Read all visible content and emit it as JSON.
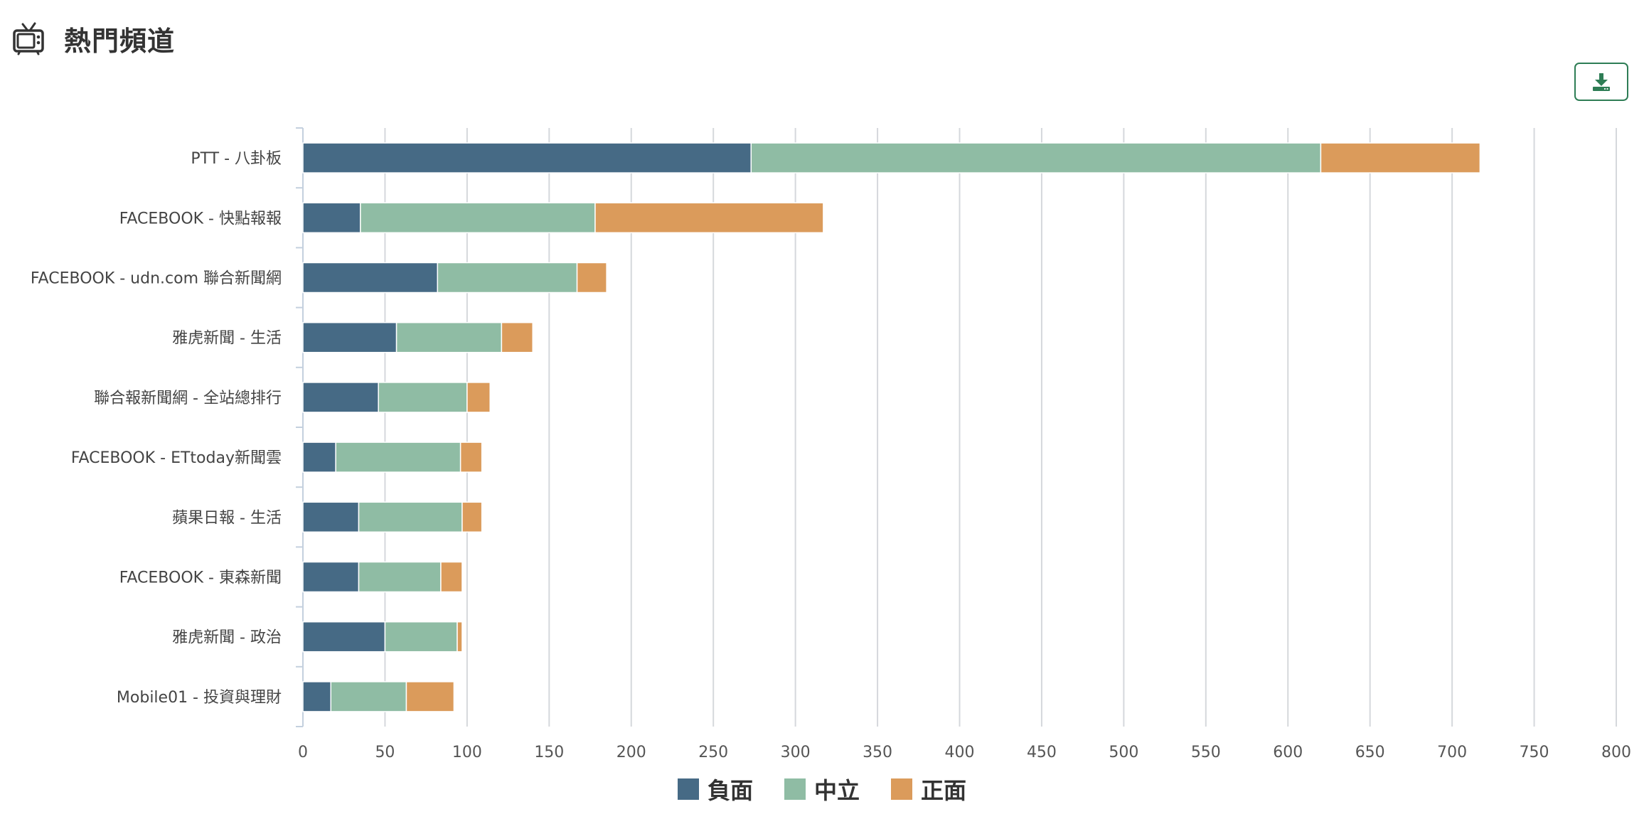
{
  "header": {
    "title": "熱門頻道",
    "icon": "tv-icon"
  },
  "toolbar": {
    "download_icon": "download-icon"
  },
  "chart_data": {
    "type": "bar",
    "orientation": "horizontal",
    "stacked": true,
    "categories": [
      "PTT - 八卦板",
      "FACEBOOK - 快點報報",
      "FACEBOOK - udn.com 聯合新聞網",
      "雅虎新聞 - 生活",
      "聯合報新聞網 - 全站總排行",
      "FACEBOOK - ETtoday新聞雲",
      "蘋果日報 - 生活",
      "FACEBOOK - 東森新聞",
      "雅虎新聞 - 政治",
      "Mobile01 - 投資與理財"
    ],
    "series": [
      {
        "name": "負面",
        "color": "#466a85",
        "values": [
          273,
          35,
          82,
          57,
          46,
          20,
          34,
          34,
          50,
          17
        ]
      },
      {
        "name": "中立",
        "color": "#8fbca4",
        "values": [
          347,
          143,
          85,
          64,
          54,
          76,
          63,
          50,
          44,
          46
        ]
      },
      {
        "name": "正面",
        "color": "#db9b5b",
        "values": [
          97,
          139,
          18,
          19,
          14,
          13,
          12,
          13,
          3,
          29
        ]
      }
    ],
    "xlim": [
      0,
      800
    ],
    "xticks": [
      0,
      50,
      100,
      150,
      200,
      250,
      300,
      350,
      400,
      450,
      500,
      550,
      600,
      650,
      700,
      750,
      800
    ],
    "grid": true,
    "legend_position": "bottom-center",
    "title": "",
    "xlabel": "",
    "ylabel": ""
  }
}
